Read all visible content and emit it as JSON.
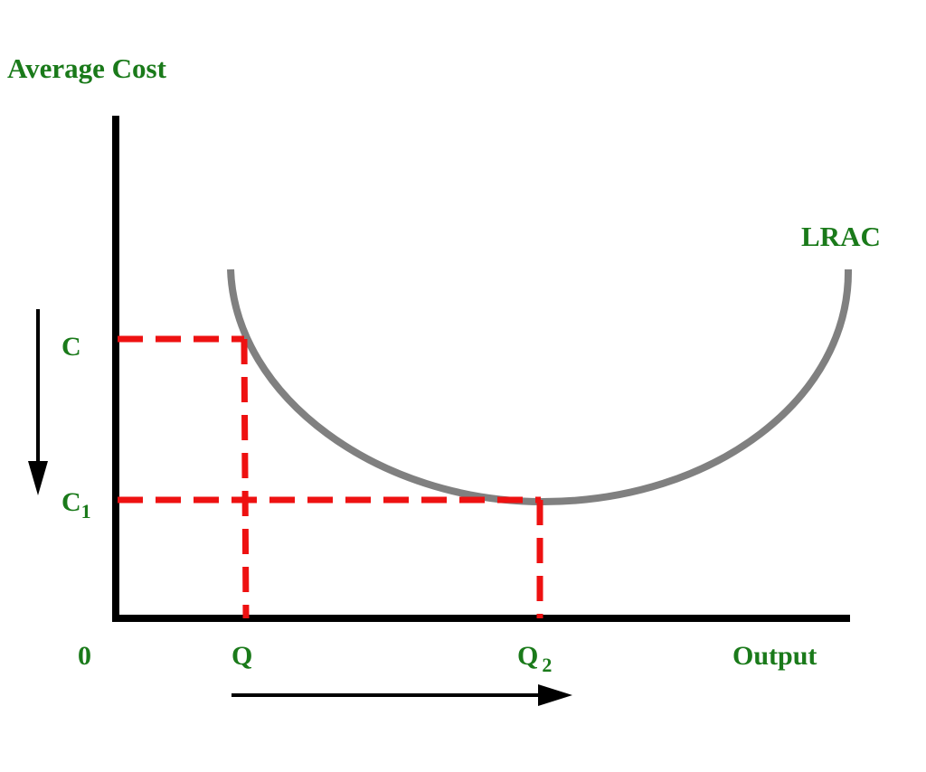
{
  "labels": {
    "y_axis": "Average Cost",
    "x_axis": "Output",
    "origin": "0",
    "curve": "LRAC",
    "cost_high": "C",
    "cost_low": "C",
    "cost_low_sub": "1",
    "qty_first": "Q",
    "qty_second": "Q",
    "qty_second_sub": "2"
  },
  "colors": {
    "label": "#1a7a1a",
    "axis": "#000000",
    "curve": "#808080",
    "guides": "#ee1111",
    "arrows": "#000000"
  }
}
